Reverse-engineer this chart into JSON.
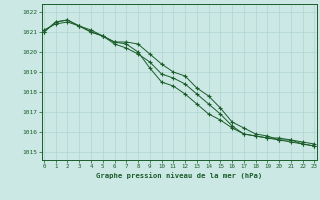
{
  "title": "Graphe pression niveau de la mer (hPa)",
  "bg_color": "#cce8e4",
  "grid_color": "#b0d4d0",
  "line_color": "#1a5c2a",
  "xlim": [
    -0.2,
    23.2
  ],
  "ylim": [
    1014.6,
    1022.4
  ],
  "yticks": [
    1015,
    1016,
    1017,
    1018,
    1019,
    1020,
    1021,
    1022
  ],
  "xticks": [
    0,
    1,
    2,
    3,
    4,
    5,
    6,
    7,
    8,
    9,
    10,
    11,
    12,
    13,
    14,
    15,
    16,
    17,
    18,
    19,
    20,
    21,
    22,
    23
  ],
  "series": [
    [
      1021.0,
      1021.5,
      1021.6,
      1021.3,
      1021.0,
      1020.8,
      1020.5,
      1020.5,
      1020.4,
      1019.9,
      1019.4,
      1019.0,
      1018.8,
      1018.2,
      1017.8,
      1017.2,
      1016.5,
      1016.2,
      1015.9,
      1015.8,
      1015.6,
      1015.6,
      1015.5,
      1015.4
    ],
    [
      1021.1,
      1021.4,
      1021.5,
      1021.3,
      1021.1,
      1020.8,
      1020.4,
      1020.2,
      1019.9,
      1019.5,
      1018.9,
      1018.7,
      1018.4,
      1017.9,
      1017.4,
      1016.9,
      1016.3,
      1015.9,
      1015.8,
      1015.7,
      1015.6,
      1015.5,
      1015.4,
      1015.3
    ],
    [
      1021.0,
      1021.5,
      1021.6,
      1021.3,
      1021.0,
      1020.8,
      1020.5,
      1020.4,
      1020.0,
      1019.2,
      1018.5,
      1018.3,
      1017.9,
      1017.4,
      1016.9,
      1016.6,
      1016.2,
      1015.9,
      1015.8,
      1015.7,
      1015.7,
      1015.6,
      1015.4,
      1015.3
    ]
  ]
}
